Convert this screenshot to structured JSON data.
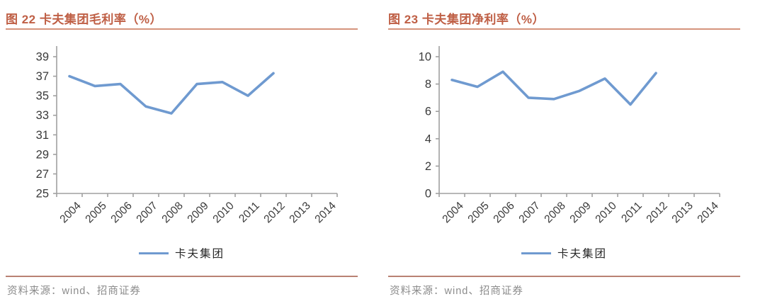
{
  "colors": {
    "title_color": "#bf5f45",
    "title_underline_color": "#d5947d",
    "bottom_rule_color": "#b98273",
    "source_text_color": "#8c8c8c",
    "axis_color": "#a0a0a0",
    "tick_label_color": "#3a3a3a",
    "line_color": "#6f9ad0",
    "legend_text_color": "#262626"
  },
  "chart_data": [
    {
      "type": "line",
      "title": "图 22 卡夫集团毛利率（%）",
      "categories": [
        "2004",
        "2005",
        "2006",
        "2007",
        "2008",
        "2009",
        "2010",
        "2011",
        "2012",
        "2013",
        "2014"
      ],
      "series": [
        {
          "name": "卡夫集团",
          "values": [
            37.0,
            36.0,
            36.2,
            33.9,
            33.2,
            36.2,
            36.4,
            35.0,
            37.3,
            null,
            null
          ]
        }
      ],
      "xlabel": "",
      "ylabel": "",
      "ylim": [
        25,
        39
      ],
      "ytick_step": 2,
      "grid": false,
      "legend_position": "bottom",
      "source_note": "资料来源：wind、招商证券"
    },
    {
      "type": "line",
      "title": "图 23 卡夫集团净利率（%）",
      "categories": [
        "2004",
        "2005",
        "2006",
        "2007",
        "2008",
        "2009",
        "2010",
        "2011",
        "2012",
        "2013",
        "2014"
      ],
      "series": [
        {
          "name": "卡夫集团",
          "values": [
            8.3,
            7.8,
            8.9,
            7.0,
            6.9,
            7.5,
            8.4,
            6.5,
            8.8,
            null,
            null
          ]
        }
      ],
      "xlabel": "",
      "ylabel": "",
      "ylim": [
        0,
        10
      ],
      "ytick_step": 2,
      "grid": false,
      "legend_position": "bottom",
      "source_note": "资料来源：wind、招商证券"
    }
  ]
}
